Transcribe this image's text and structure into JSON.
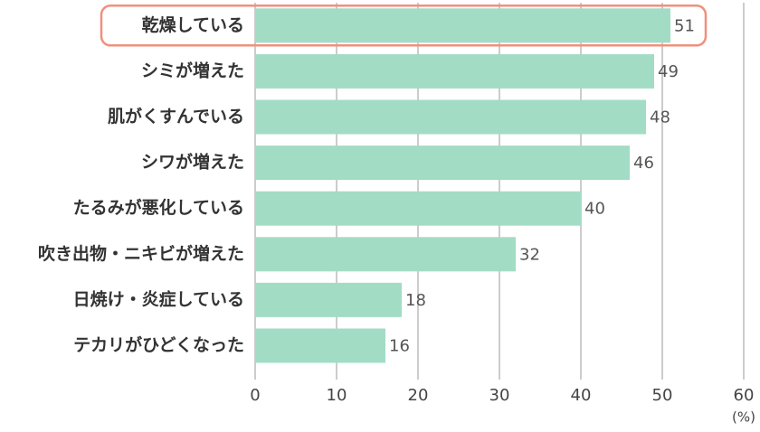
{
  "chart_data": {
    "type": "barh",
    "categories": [
      "乾燥している",
      "シミが増えた",
      "肌がくすんでいる",
      "シワが増えた",
      "たるみが悪化している",
      "吹き出物・ニキビが増えた",
      "日焼け・炎症している",
      "テカリがひどくなった"
    ],
    "values": [
      51,
      49,
      48,
      46,
      40,
      32,
      18,
      16
    ],
    "color": "#a3dcc5",
    "xlim": [
      0,
      60
    ],
    "xticks": [
      0,
      10,
      20,
      30,
      40,
      50,
      60
    ],
    "xlabel": "(%)",
    "grid": true,
    "highlight": 0,
    "highlight_color": "#f0907c"
  }
}
